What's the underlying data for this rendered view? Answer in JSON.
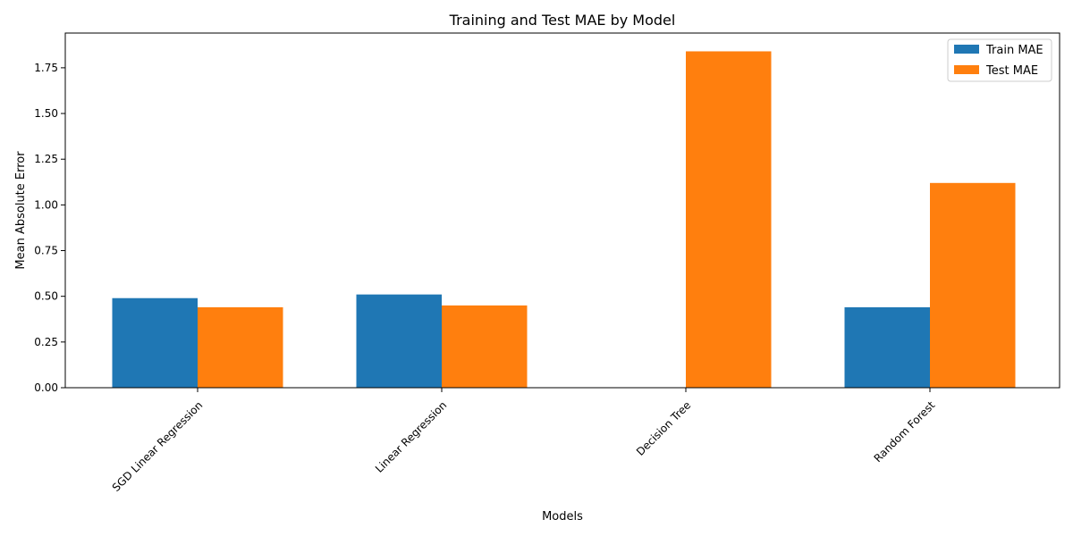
{
  "chart_data": {
    "type": "bar",
    "title": "Training and Test MAE by Model",
    "xlabel": "Models",
    "ylabel": "Mean Absolute Error",
    "categories": [
      "SGD Linear Regression",
      "Linear Regression",
      "Decision Tree",
      "Random Forest"
    ],
    "series": [
      {
        "name": "Train MAE",
        "color": "#1f77b4",
        "values": [
          0.49,
          0.51,
          0.0,
          0.44
        ]
      },
      {
        "name": "Test MAE",
        "color": "#ff7f0e",
        "values": [
          0.44,
          0.45,
          1.84,
          1.12
        ]
      }
    ],
    "ylim": [
      0,
      1.94
    ],
    "yticks": [
      "0.00",
      "0.25",
      "0.50",
      "0.75",
      "1.00",
      "1.25",
      "1.50",
      "1.75"
    ],
    "legend_position": "top-right",
    "grid": false,
    "x_tick_rotation": 45
  }
}
